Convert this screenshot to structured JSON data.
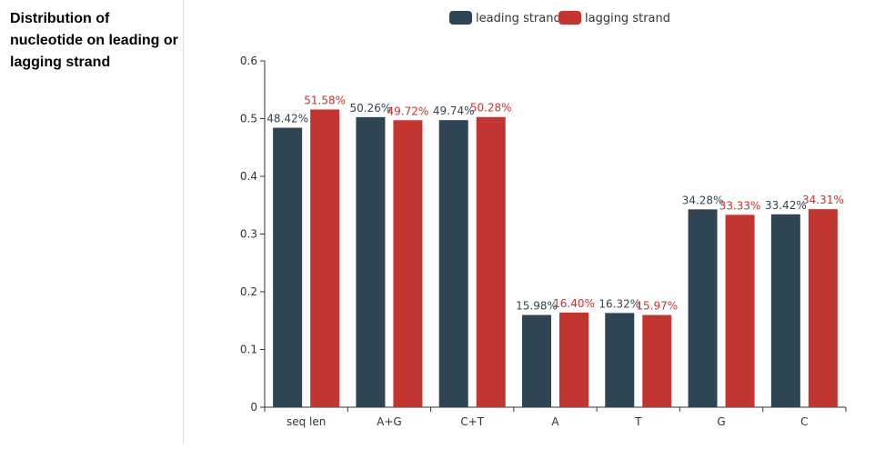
{
  "panel": {
    "title": "Distribution of nucleotide on leading or lagging strand"
  },
  "chart_data": {
    "type": "bar",
    "title": "",
    "xlabel": "",
    "ylabel": "",
    "categories": [
      "seq len",
      "A+G",
      "C+T",
      "A",
      "T",
      "G",
      "C"
    ],
    "series": [
      {
        "name": "leading strand",
        "color": "#2f4554",
        "values": [
          0.4842,
          0.5026,
          0.4974,
          0.1598,
          0.1632,
          0.3428,
          0.3342
        ],
        "labels": [
          "48.42%",
          "50.26%",
          "49.74%",
          "15.98%",
          "16.32%",
          "34.28%",
          "33.42%"
        ]
      },
      {
        "name": "lagging strand",
        "color": "#c23531",
        "values": [
          0.5158,
          0.4972,
          0.5028,
          0.164,
          0.1597,
          0.3333,
          0.3431
        ],
        "labels": [
          "51.58%",
          "49.72%",
          "50.28%",
          "16.40%",
          "15.97%",
          "33.33%",
          "34.31%"
        ]
      }
    ],
    "ylim": [
      0,
      0.6
    ],
    "yticks": [
      0,
      0.1,
      0.2,
      0.3,
      0.4,
      0.5,
      0.6
    ],
    "ytick_labels": [
      "0",
      "0.1",
      "0.2",
      "0.3",
      "0.4",
      "0.5",
      "0.6"
    ],
    "grid": false,
    "legend_position": "top-center"
  }
}
